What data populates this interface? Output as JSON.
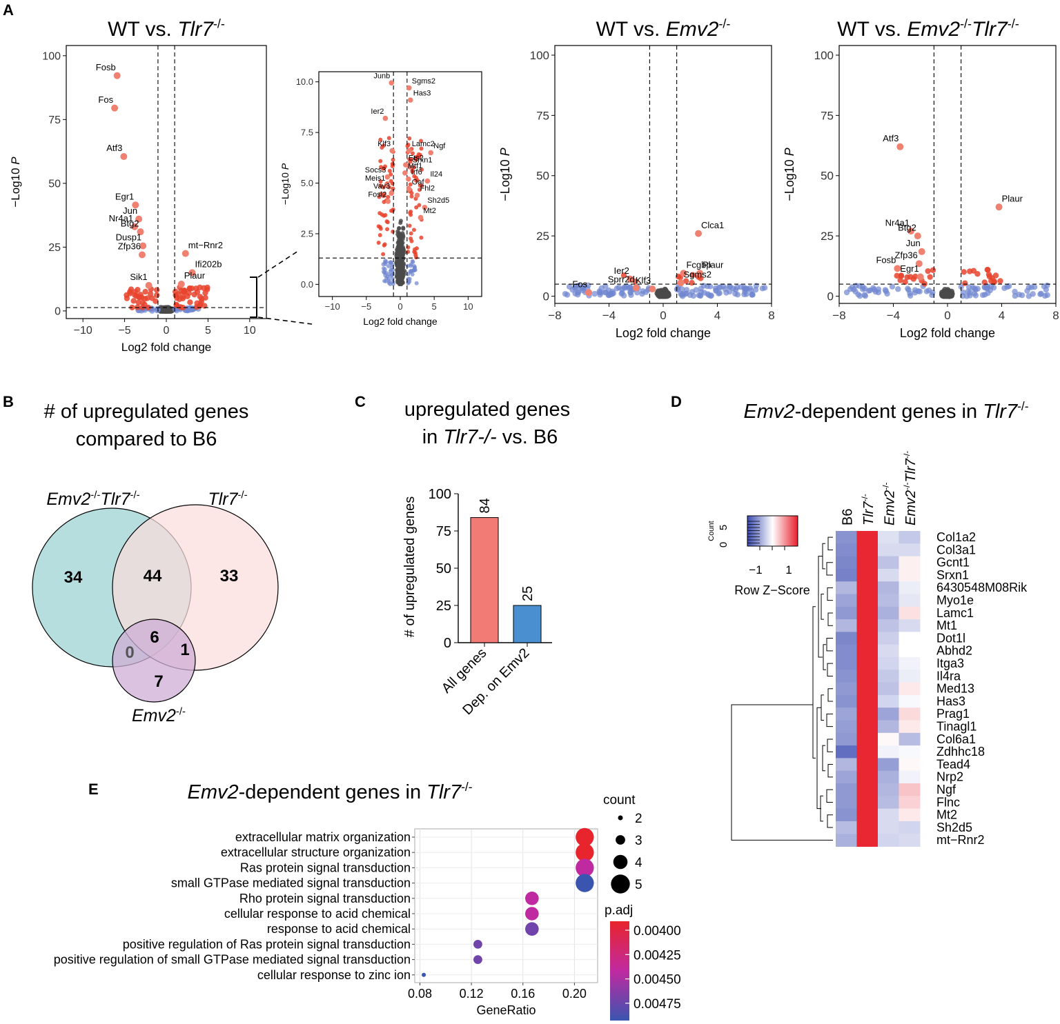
{
  "panel_labels": {
    "a": "A",
    "b": "B",
    "c": "C",
    "d": "D",
    "e": "E"
  },
  "colors": {
    "up": "#e8442e",
    "up_light": "#f08070",
    "down": "#6f86d0",
    "ns": "#4a4a4a",
    "bar_all": "#f27b76",
    "bar_dep": "#4a8fd0",
    "venn_emv2tlr7": "#aedadb",
    "venn_tlr7": "#fbdcdc",
    "venn_emv2": "#cfaed6",
    "heat_low": "#3b4bb0",
    "heat_mid": "#ffffff",
    "heat_high": "#e8202c",
    "padj_low": "#e8242c",
    "padj_mid": "#c02aa0",
    "padj_high": "#3a55b0"
  },
  "chart_data": [
    {
      "id": "a1",
      "type": "scatter",
      "title_parts": [
        {
          "t": "WT vs. ",
          "i": false
        },
        {
          "t": "Tlr7",
          "i": true
        },
        {
          "t": "-/-",
          "i": false,
          "sup": true
        }
      ],
      "xlabel": "Log2 fold change",
      "ylabel": "−Log10 P",
      "xlim": [
        -12,
        12
      ],
      "ylim": [
        -3,
        104
      ],
      "xticks": [
        -10,
        -5,
        0,
        5,
        10
      ],
      "xtick_labels": [
        "−10",
        "−5",
        "0",
        "5",
        "10"
      ],
      "yticks": [
        0,
        25,
        50,
        75,
        100
      ],
      "ytick_labels": [
        "0",
        "25",
        "50",
        "75",
        "100"
      ],
      "vlines": [
        -1,
        1
      ],
      "hline": 1.3,
      "labels": [
        {
          "x": -5.9,
          "y": 92.2,
          "text": "Fosb"
        },
        {
          "x": -6.2,
          "y": 79.5,
          "text": "Fos"
        },
        {
          "x": -5.1,
          "y": 60.5,
          "text": "Atf3"
        },
        {
          "x": -3.7,
          "y": 41.5,
          "text": "Egr1"
        },
        {
          "x": -3.3,
          "y": 36.0,
          "text": "Jun"
        },
        {
          "x": -3.8,
          "y": 33.0,
          "text": "Nr4a1"
        },
        {
          "x": -3.1,
          "y": 31.0,
          "text": "Btg2"
        },
        {
          "x": -2.8,
          "y": 25.5,
          "text": "Dusp1"
        },
        {
          "x": -2.9,
          "y": 22.0,
          "text": "Zfp36"
        },
        {
          "x": -2.1,
          "y": 10.0,
          "text": "Sik1"
        },
        {
          "x": 2.3,
          "y": 22.5,
          "text": "mt−Rnr2"
        },
        {
          "x": 3.1,
          "y": 15.0,
          "text": "Ifi202b"
        },
        {
          "x": 1.8,
          "y": 10.5,
          "text": "Plaur"
        }
      ]
    },
    {
      "id": "a2",
      "type": "scatter",
      "xlabel": "Log2 fold change",
      "ylabel": "−Log10 P",
      "xlim": [
        -12,
        12
      ],
      "ylim": [
        -0.6,
        10.5
      ],
      "xticks": [
        -10,
        -5,
        0,
        5,
        10
      ],
      "xtick_labels": [
        "−10",
        "−5",
        "0",
        "5",
        "10"
      ],
      "yticks": [
        0,
        2.5,
        5,
        7.5,
        10
      ],
      "ytick_labels": [
        "0.0",
        "2.5",
        "5.0",
        "7.5",
        "10.0"
      ],
      "vlines": [
        -1,
        1
      ],
      "hline": 1.3,
      "labels": [
        {
          "x": -1.3,
          "y": 9.95,
          "text": "Junb"
        },
        {
          "x": 1.3,
          "y": 9.7,
          "text": "Sgms2"
        },
        {
          "x": 1.5,
          "y": 9.1,
          "text": "Has3"
        },
        {
          "x": -2.2,
          "y": 8.2,
          "text": "Ier2"
        },
        {
          "x": -1.2,
          "y": 6.6,
          "text": "Klf3"
        },
        {
          "x": 1.3,
          "y": 6.6,
          "text": "Lamc2"
        },
        {
          "x": 4.5,
          "y": 6.5,
          "text": "Ngf"
        },
        {
          "x": 0.8,
          "y": 5.9,
          "text": "Ets2"
        },
        {
          "x": 1.4,
          "y": 5.8,
          "text": "Srxn1"
        },
        {
          "x": 0.7,
          "y": 5.5,
          "text": "Mtf1"
        },
        {
          "x": -1.9,
          "y": 5.3,
          "text": "Socs3"
        },
        {
          "x": 1.2,
          "y": 5.2,
          "text": "Irf6"
        },
        {
          "x": -2.0,
          "y": 4.9,
          "text": "Meis1"
        },
        {
          "x": 4.0,
          "y": 5.1,
          "text": "Il24"
        },
        {
          "x": 1.3,
          "y": 4.7,
          "text": "Oaf"
        },
        {
          "x": -1.3,
          "y": 4.5,
          "text": "Vav3"
        },
        {
          "x": 2.5,
          "y": 4.4,
          "text": "Fhl2"
        },
        {
          "x": -1.8,
          "y": 4.1,
          "text": "Fosl2"
        },
        {
          "x": 3.6,
          "y": 3.8,
          "text": "Sh2d5"
        },
        {
          "x": 3.0,
          "y": 3.3,
          "text": "Mt2"
        }
      ]
    },
    {
      "id": "a3",
      "type": "scatter",
      "title_parts": [
        {
          "t": "WT vs. ",
          "i": false
        },
        {
          "t": "Emv2",
          "i": true
        },
        {
          "t": "-/-",
          "i": false,
          "sup": true
        }
      ],
      "xlabel": "Log2 fold change",
      "ylabel": "−Log10 P",
      "xlim": [
        -8,
        8
      ],
      "ylim": [
        -3,
        104
      ],
      "xticks": [
        -8,
        -4,
        0,
        4,
        8
      ],
      "xtick_labels": [
        "−8",
        "−4",
        "0",
        "4",
        "8"
      ],
      "yticks": [
        0,
        25,
        50,
        75,
        100
      ],
      "ytick_labels": [
        "0",
        "25",
        "50",
        "75",
        "100"
      ],
      "vlines": [
        -1,
        1
      ],
      "hline": 5,
      "labels": [
        {
          "x": 2.6,
          "y": 26.0,
          "text": "Clca1"
        },
        {
          "x": 1.5,
          "y": 9.5,
          "text": "Fcgbp"
        },
        {
          "x": 2.7,
          "y": 9.5,
          "text": "Plaur"
        },
        {
          "x": -2.4,
          "y": 7.0,
          "text": "Ier2"
        },
        {
          "x": 1.3,
          "y": 5.5,
          "text": "Sgms2"
        },
        {
          "x": -5.5,
          "y": 1.5,
          "text": "Fos"
        },
        {
          "x": -2.0,
          "y": 3.5,
          "text": "Sprr2d"
        },
        {
          "x": -0.8,
          "y": 3.0,
          "text": "Klf3"
        }
      ]
    },
    {
      "id": "a4",
      "type": "scatter",
      "title_parts": [
        {
          "t": "WT vs. ",
          "i": false
        },
        {
          "t": "Emv2",
          "i": true
        },
        {
          "t": "-/-",
          "i": false,
          "sup": true
        },
        {
          "t": "Tlr7",
          "i": true
        },
        {
          "t": "-/-",
          "i": false,
          "sup": true
        }
      ],
      "xlabel": "Log2 fold change",
      "ylabel": "−Log10 P",
      "xlim": [
        -8,
        8
      ],
      "ylim": [
        -3,
        104
      ],
      "xticks": [
        -8,
        -4,
        0,
        4,
        8
      ],
      "xtick_labels": [
        "−8",
        "−4",
        "0",
        "4",
        "8"
      ],
      "yticks": [
        0,
        25,
        50,
        75,
        100
      ],
      "ytick_labels": [
        "0",
        "25",
        "50",
        "75",
        "100"
      ],
      "vlines": [
        -1,
        1
      ],
      "hline": 5,
      "labels": [
        {
          "x": -3.5,
          "y": 62.0,
          "text": "Atf3"
        },
        {
          "x": 3.8,
          "y": 37.0,
          "text": "Plaur"
        },
        {
          "x": -2.7,
          "y": 27.0,
          "text": "Nr4a1"
        },
        {
          "x": -2.2,
          "y": 25.0,
          "text": "Btg2"
        },
        {
          "x": -1.9,
          "y": 18.5,
          "text": "Jun"
        },
        {
          "x": -2.1,
          "y": 13.5,
          "text": "Zfp36"
        },
        {
          "x": -3.7,
          "y": 11.5,
          "text": "Fosb"
        },
        {
          "x": -2.0,
          "y": 8.0,
          "text": "Egr1"
        }
      ]
    },
    {
      "id": "c",
      "type": "bar",
      "title_parts": [
        {
          "t": "upregulated genes",
          "i": false
        }
      ],
      "title_line2_parts": [
        {
          "t": "in ",
          "i": false
        },
        {
          "t": "Tlr7-/-",
          "i": true
        },
        {
          "t": " vs. B6",
          "i": false
        }
      ],
      "categories": [
        "All genes",
        "Dep. on Emv2"
      ],
      "values": [
        84,
        25
      ],
      "ylabel": "# of upregulated genes",
      "ylim": [
        0,
        100
      ],
      "yticks": [
        0,
        25,
        50,
        75,
        100
      ],
      "ytick_labels": [
        "0",
        "25",
        "50",
        "75",
        "100"
      ]
    },
    {
      "id": "d",
      "type": "heatmap",
      "title_parts": [
        {
          "t": "Emv2",
          "i": true
        },
        {
          "t": "-dependent genes in ",
          "i": false
        },
        {
          "t": "Tlr7",
          "i": true
        },
        {
          "t": "-/-",
          "i": false,
          "sup": true
        }
      ],
      "columns": [
        "B6",
        "Tlr7-/-",
        "Emv2-/-",
        "Emv2-/-Tlr7-/-"
      ],
      "rows": [
        "Col1a2",
        "Col3a1",
        "Gcnt1",
        "Srxn1",
        "6430548M08Rik",
        "Myo1e",
        "Lamc1",
        "Mt1",
        "Dot1l",
        "Abhd2",
        "Itga3",
        "Il4ra",
        "Med13",
        "Has3",
        "Prag1",
        "Tinagl1",
        "Col6a1",
        "Zdhhc18",
        "Tead4",
        "Nrp2",
        "Ngf",
        "Flnc",
        "Mt2",
        "Sh2d5",
        "mt−Rnr2"
      ],
      "values": [
        [
          -0.9,
          1.45,
          -0.25,
          -0.45
        ],
        [
          -0.95,
          1.45,
          -0.3,
          -0.3
        ],
        [
          -1.0,
          1.45,
          -0.5,
          0.1
        ],
        [
          -1.05,
          1.45,
          -0.3,
          0.1
        ],
        [
          -0.6,
          1.45,
          -0.6,
          -0.15
        ],
        [
          -0.75,
          1.45,
          -0.55,
          -0.2
        ],
        [
          -0.85,
          1.45,
          -0.65,
          0.2
        ],
        [
          -0.6,
          1.45,
          -0.5,
          -0.3
        ],
        [
          -1.0,
          1.45,
          -0.4,
          0.0
        ],
        [
          -0.95,
          1.45,
          -0.3,
          0.0
        ],
        [
          -0.95,
          1.45,
          -0.35,
          -0.1
        ],
        [
          -0.9,
          1.45,
          -0.45,
          -0.15
        ],
        [
          -0.85,
          1.45,
          -0.5,
          0.15
        ],
        [
          -0.9,
          1.45,
          -0.35,
          -0.05
        ],
        [
          -0.75,
          1.45,
          -0.75,
          0.25
        ],
        [
          -0.8,
          1.45,
          -0.6,
          0.15
        ],
        [
          -0.85,
          1.45,
          0.05,
          -0.55
        ],
        [
          -1.2,
          1.45,
          -0.1,
          -0.05
        ],
        [
          -0.6,
          1.45,
          -0.8,
          0.05
        ],
        [
          -0.75,
          1.45,
          -0.65,
          -0.1
        ],
        [
          -0.85,
          1.45,
          -0.6,
          0.4
        ],
        [
          -0.85,
          1.45,
          -0.55,
          0.3
        ],
        [
          -0.9,
          1.45,
          -0.3,
          0.15
        ],
        [
          -0.55,
          1.45,
          -0.3,
          -0.35
        ],
        [
          -0.65,
          1.45,
          -0.35,
          -0.3
        ]
      ],
      "legend": {
        "title": "Row Z−Score",
        "hist_label": "Count",
        "hist_ticks": [
          "0",
          "5"
        ],
        "ticks": [
          "−1",
          "1"
        ]
      }
    },
    {
      "id": "e",
      "type": "dotplot",
      "title_parts": [
        {
          "t": "Emv2",
          "i": true
        },
        {
          "t": "-dependent genes in ",
          "i": false
        },
        {
          "t": "Tlr7",
          "i": true
        },
        {
          "t": "-/-",
          "i": false,
          "sup": true
        }
      ],
      "xlabel": "GeneRatio",
      "xlim": [
        0.076,
        0.218
      ],
      "xticks": [
        0.08,
        0.12,
        0.16,
        0.2
      ],
      "xtick_labels": [
        "0.08",
        "0.12",
        "0.16",
        "0.20"
      ],
      "terms": [
        {
          "label": "extracellular matrix organization",
          "ratio": 0.208,
          "count": 5,
          "padj": 0.0039
        },
        {
          "label": "extracellular structure organization",
          "ratio": 0.208,
          "count": 5,
          "padj": 0.0039
        },
        {
          "label": "Ras protein signal transduction",
          "ratio": 0.208,
          "count": 5,
          "padj": 0.0044
        },
        {
          "label": "small GTPase mediated signal transduction",
          "ratio": 0.208,
          "count": 5,
          "padj": 0.0049
        },
        {
          "label": "Rho protein signal transduction",
          "ratio": 0.167,
          "count": 4,
          "padj": 0.0044
        },
        {
          "label": "cellular response to acid chemical",
          "ratio": 0.167,
          "count": 4,
          "padj": 0.0044
        },
        {
          "label": "response to acid chemical",
          "ratio": 0.167,
          "count": 4,
          "padj": 0.0047
        },
        {
          "label": "positive regulation of Ras protein signal transduction",
          "ratio": 0.125,
          "count": 3,
          "padj": 0.0047
        },
        {
          "label": "positive regulation of small GTPase mediated signal transduction",
          "ratio": 0.125,
          "count": 3,
          "padj": 0.0047
        },
        {
          "label": "cellular response to zinc ion",
          "ratio": 0.083,
          "count": 2,
          "padj": 0.0049
        }
      ],
      "size_legend": {
        "title": "count",
        "values": [
          2,
          3,
          4,
          5
        ],
        "labels": [
          "2",
          "3",
          "4",
          "5"
        ]
      },
      "color_legend": {
        "title": "p.adj",
        "values": [
          0.004,
          0.00425,
          0.0045,
          0.00475
        ],
        "labels": [
          "0.00400",
          "0.00425",
          "0.00450",
          "0.00475"
        ]
      }
    }
  ],
  "venn": {
    "title_line1": "# of upregulated genes",
    "title_line2": "compared to B6",
    "set_labels": [
      {
        "parts": [
          {
            "t": "Emv2",
            "i": true
          },
          {
            "t": "-/-",
            "i": false,
            "sup": true
          },
          {
            "t": "Tlr7",
            "i": true
          },
          {
            "t": "-/-",
            "i": false,
            "sup": true
          }
        ]
      },
      {
        "parts": [
          {
            "t": "Tlr7",
            "i": true
          },
          {
            "t": "-/-",
            "i": false,
            "sup": true
          }
        ]
      },
      {
        "parts": [
          {
            "t": "Emv2",
            "i": true
          },
          {
            "t": "-/-",
            "i": false,
            "sup": true
          }
        ]
      }
    ],
    "regions": {
      "only_emv2tlr7": "34",
      "emv2tlr7_and_tlr7": "44",
      "only_tlr7": "33",
      "all_three": "6",
      "emv2tlr7_and_emv2": "0",
      "tlr7_and_emv2": "1",
      "only_emv2": "7"
    }
  }
}
